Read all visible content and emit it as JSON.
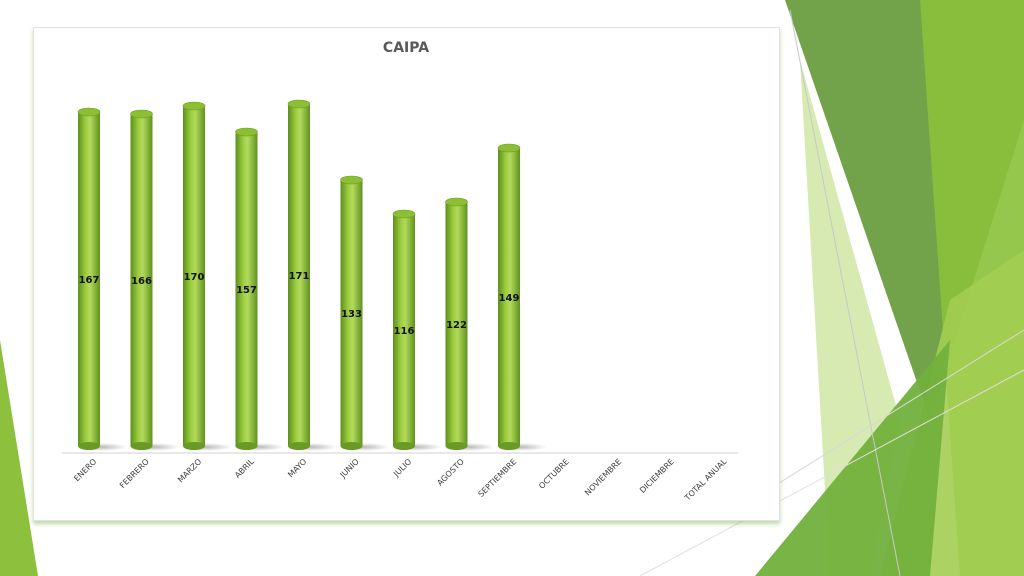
{
  "theme": {
    "accent_dark": "#5e9a37",
    "accent": "#7db436",
    "accent_light": "#a9d056",
    "accent_pale": "#d4e9a8",
    "bar_mid": "#9ccd3f",
    "bar_dark": "#5d8f1c"
  },
  "chart_data": {
    "type": "bar",
    "title": "CAIPA",
    "categories": [
      "ENERO",
      "FEBRERO",
      "MARZO",
      "ABRIL",
      "MAYO",
      "JUNIO",
      "JULIO",
      "AGOSTO",
      "SEPTIEMBRE",
      "OCTUBRE",
      "NOVIEMBRE",
      "DICIEMBRE",
      "TOTAL ANUAL"
    ],
    "values": [
      167,
      166,
      170,
      157,
      171,
      133,
      116,
      122,
      149,
      null,
      null,
      null,
      null
    ],
    "xlabel": "",
    "ylabel": "",
    "bar_style": "3d-cylinder",
    "data_labels": true,
    "grid": false,
    "legend": "none"
  }
}
